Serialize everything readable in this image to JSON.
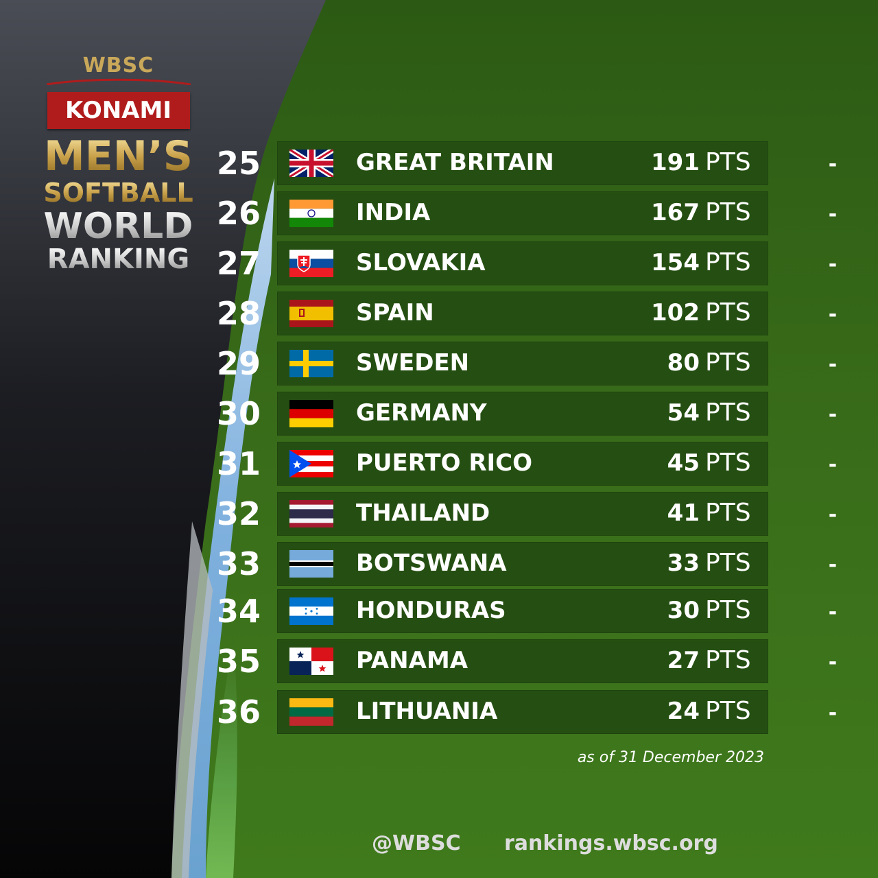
{
  "header": {
    "org": "WBSC",
    "sponsor": "KONAMI",
    "title_lines": [
      "MEN’S",
      "SOFTBALL",
      "WORLD",
      "RANKING"
    ]
  },
  "rankings": [
    {
      "rank": "25",
      "country": "GREAT BRITAIN",
      "points": "191",
      "unit": "PTS",
      "change": "-",
      "flag": "great-britain"
    },
    {
      "rank": "26",
      "country": "INDIA",
      "points": "167",
      "unit": "PTS",
      "change": "-",
      "flag": "india"
    },
    {
      "rank": "27",
      "country": "SLOVAKIA",
      "points": "154",
      "unit": "PTS",
      "change": "-",
      "flag": "slovakia"
    },
    {
      "rank": "28",
      "country": "SPAIN",
      "points": "102",
      "unit": "PTS",
      "change": "-",
      "flag": "spain"
    },
    {
      "rank": "29",
      "country": "SWEDEN",
      "points": "80",
      "unit": "PTS",
      "change": "-",
      "flag": "sweden"
    },
    {
      "rank": "30",
      "country": "GERMANY",
      "points": "54",
      "unit": "PTS",
      "change": "-",
      "flag": "germany"
    },
    {
      "rank": "31",
      "country": "PUERTO RICO",
      "points": "45",
      "unit": "PTS",
      "change": "-",
      "flag": "puerto-rico"
    },
    {
      "rank": "32",
      "country": "THAILAND",
      "points": "41",
      "unit": "PTS",
      "change": "-",
      "flag": "thailand"
    },
    {
      "rank": "33",
      "country": "BOTSWANA",
      "points": "33",
      "unit": "PTS",
      "change": "-",
      "flag": "botswana"
    },
    {
      "rank": "34",
      "country": "HONDURAS",
      "points": "30",
      "unit": "PTS",
      "change": "-",
      "flag": "honduras"
    },
    {
      "rank": "35",
      "country": "PANAMA",
      "points": "27",
      "unit": "PTS",
      "change": "-",
      "flag": "panama"
    },
    {
      "rank": "36",
      "country": "LITHUANIA",
      "points": "24",
      "unit": "PTS",
      "change": "-",
      "flag": "lithuania"
    }
  ],
  "as_of": "as of 31 December 2023",
  "footer": {
    "handle": "@WBSC",
    "website": "rankings.wbsc.org"
  },
  "colors": {
    "background_green": "#3a6e1a",
    "row_green": "#254f12",
    "konami_red": "#b01c1c",
    "gold": "#c9a14a",
    "dark_panel": "#1a1a1c"
  }
}
